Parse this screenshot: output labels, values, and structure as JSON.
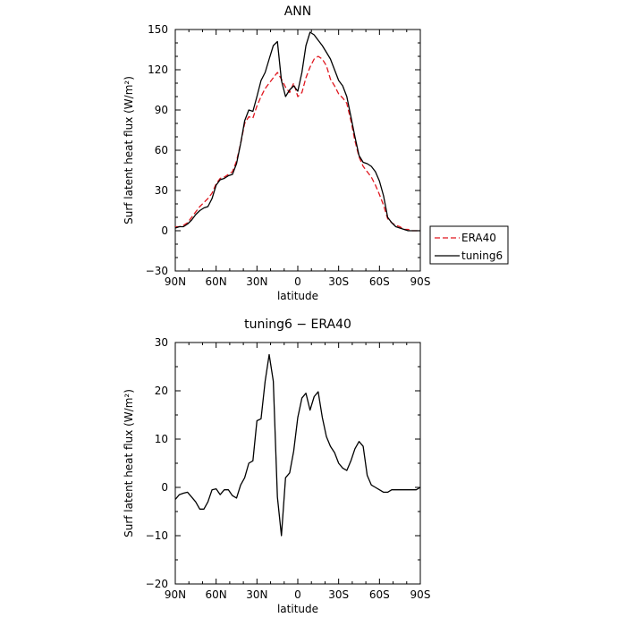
{
  "chart_data": [
    {
      "type": "line",
      "title": "ANN",
      "xlabel": "latitude",
      "ylabel": "Surf latent heat flux (W/m²)",
      "xlim": [
        90,
        -90
      ],
      "ylim": [
        -30,
        150
      ],
      "xticks": [
        90,
        60,
        30,
        0,
        -30,
        -60,
        -90
      ],
      "xticklabels": [
        "90N",
        "60N",
        "30N",
        "0",
        "30S",
        "60S",
        "90S"
      ],
      "yticks": [
        -30,
        0,
        30,
        60,
        90,
        120,
        150
      ],
      "yticklabels": [
        "−30",
        "0",
        "30",
        "60",
        "90",
        "120",
        "150"
      ],
      "legend": "right",
      "series": [
        {
          "name": "ERA40",
          "color": "#e0161e",
          "dash": "dashed",
          "x": [
            90,
            87,
            84,
            81,
            78,
            75,
            72,
            69,
            66,
            63,
            60,
            57,
            54,
            51,
            48,
            45,
            42,
            39,
            36,
            33,
            30,
            27,
            24,
            21,
            18,
            15,
            12,
            9,
            6,
            3,
            0,
            -3,
            -6,
            -9,
            -12,
            -15,
            -18,
            -21,
            -24,
            -27,
            -30,
            -33,
            -36,
            -39,
            -42,
            -45,
            -48,
            -51,
            -54,
            -57,
            -60,
            -63,
            -66,
            -69,
            -72,
            -75,
            -78,
            -81,
            -84,
            -87,
            -90
          ],
          "values": [
            3,
            3,
            4,
            6,
            10,
            14,
            18,
            21,
            24,
            28,
            35,
            39,
            40,
            42,
            44,
            52,
            65,
            80,
            85,
            84,
            93,
            100,
            106,
            110,
            114,
            118,
            113,
            107,
            103,
            110,
            100,
            103,
            114,
            122,
            128,
            130,
            128,
            123,
            113,
            108,
            102,
            99,
            95,
            82,
            67,
            55,
            48,
            44,
            40,
            34,
            27,
            19,
            9,
            6,
            4,
            3,
            1,
            1,
            0,
            0,
            0
          ]
        },
        {
          "name": "tuning6",
          "color": "#000000",
          "dash": "solid",
          "x": [
            90,
            87,
            84,
            81,
            78,
            75,
            72,
            69,
            66,
            63,
            60,
            57,
            54,
            51,
            48,
            45,
            42,
            39,
            36,
            33,
            30,
            27,
            24,
            21,
            18,
            15,
            12,
            9,
            6,
            3,
            0,
            -3,
            -6,
            -9,
            -12,
            -15,
            -18,
            -21,
            -24,
            -27,
            -30,
            -33,
            -36,
            -39,
            -42,
            -45,
            -48,
            -51,
            -54,
            -57,
            -60,
            -63,
            -66,
            -69,
            -72,
            -75,
            -78,
            -81,
            -84,
            -87,
            -90
          ],
          "values": [
            2,
            3,
            3,
            5,
            8,
            12,
            15,
            17,
            18,
            24,
            34,
            38,
            39,
            41,
            42,
            50,
            65,
            82,
            90,
            89,
            100,
            112,
            118,
            128,
            138,
            141,
            112,
            100,
            105,
            108,
            104,
            118,
            138,
            148,
            146,
            142,
            138,
            133,
            128,
            120,
            112,
            108,
            100,
            85,
            70,
            56,
            51,
            50,
            48,
            44,
            37,
            26,
            10,
            6,
            3,
            2,
            1,
            0,
            0,
            0,
            0
          ]
        }
      ]
    },
    {
      "type": "line",
      "title": "tuning6 − ERA40",
      "xlabel": "latitude",
      "ylabel": "Surf latent heat flux (W/m²)",
      "xlim": [
        90,
        -90
      ],
      "ylim": [
        -20,
        30
      ],
      "xticks": [
        90,
        60,
        30,
        0,
        -30,
        -60,
        -90
      ],
      "xticklabels": [
        "90N",
        "60N",
        "30N",
        "0",
        "30S",
        "60S",
        "90S"
      ],
      "yticks": [
        -20,
        -10,
        0,
        10,
        20,
        30
      ],
      "yticklabels": [
        "−20",
        "−10",
        "0",
        "10",
        "20",
        "30"
      ],
      "series": [
        {
          "name": "",
          "color": "#000000",
          "dash": "solid",
          "x": [
            90,
            87,
            84,
            81,
            78,
            75,
            72,
            69,
            66,
            63,
            60,
            57,
            54,
            51,
            48,
            45,
            42,
            39,
            36,
            33,
            30,
            27,
            24,
            21,
            18,
            15,
            12,
            9,
            6,
            3,
            0,
            -3,
            -6,
            -9,
            -12,
            -15,
            -18,
            -21,
            -24,
            -27,
            -30,
            -33,
            -36,
            -39,
            -42,
            -45,
            -48,
            -51,
            -54,
            -57,
            -60,
            -63,
            -66,
            -69,
            -72,
            -75,
            -78,
            -81,
            -84,
            -87,
            -90
          ],
          "values": [
            -2.5,
            -1.5,
            -1.2,
            -1.0,
            -2.0,
            -3.0,
            -4.5,
            -4.5,
            -3.0,
            -0.5,
            -0.3,
            -1.5,
            -0.5,
            -0.5,
            -1.7,
            -2.2,
            0.5,
            2.0,
            5.0,
            5.5,
            13.8,
            14.2,
            22.0,
            27.5,
            22.0,
            -2.0,
            -10.0,
            2.0,
            3.0,
            7.5,
            14.5,
            18.5,
            19.5,
            16.0,
            18.8,
            19.8,
            14.5,
            10.5,
            8.5,
            7.2,
            5.0,
            4.0,
            3.5,
            5.5,
            8.0,
            9.5,
            8.5,
            2.5,
            0.5,
            0.0,
            -0.5,
            -1.0,
            -1.0,
            -0.5,
            -0.5,
            -0.5,
            -0.5,
            -0.5,
            -0.5,
            -0.5,
            0.0
          ]
        }
      ]
    }
  ]
}
